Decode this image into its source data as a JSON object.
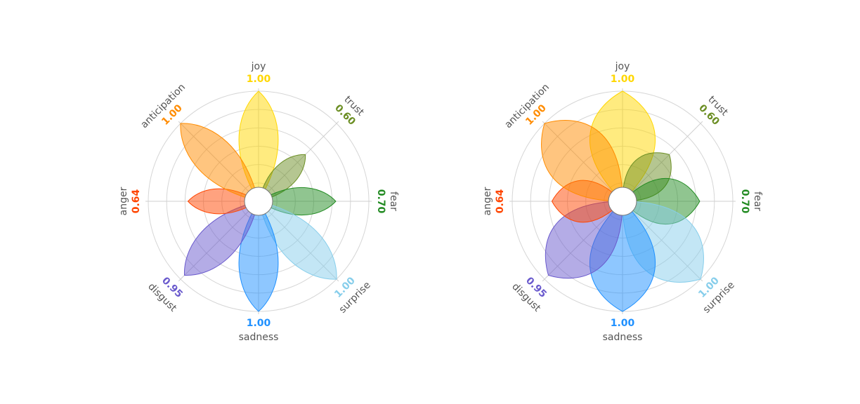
{
  "colors": {
    "joy": "#ffd700",
    "trust": "#6b8e23",
    "fear": "#228b22",
    "surprise": "#87ceeb",
    "sadness": "#1e90ff",
    "disgust": "#6a5acd",
    "anger": "#ff4500",
    "anticipation": "#ff8c00"
  },
  "chart_data": [
    {
      "type": "petal-radar",
      "emotions": [
        {
          "name": "joy",
          "value": 1.0,
          "label": "1.00"
        },
        {
          "name": "trust",
          "value": 0.6,
          "label": "0.60"
        },
        {
          "name": "fear",
          "value": 0.7,
          "label": "0.70"
        },
        {
          "name": "surprise",
          "value": 1.0,
          "label": "1.00"
        },
        {
          "name": "sadness",
          "value": 1.0,
          "label": "1.00"
        },
        {
          "name": "disgust",
          "value": 0.95,
          "label": "0.95"
        },
        {
          "name": "anger",
          "value": 0.64,
          "label": "0.64"
        },
        {
          "name": "anticipation",
          "value": 1.0,
          "label": "1.00"
        }
      ],
      "rmax": 1.0,
      "grid": true,
      "petal_style": "narrow"
    },
    {
      "type": "petal-radar",
      "emotions": [
        {
          "name": "joy",
          "value": 1.0,
          "label": "1.00"
        },
        {
          "name": "trust",
          "value": 0.6,
          "label": "0.60"
        },
        {
          "name": "fear",
          "value": 0.7,
          "label": "0.70"
        },
        {
          "name": "surprise",
          "value": 1.0,
          "label": "1.00"
        },
        {
          "name": "sadness",
          "value": 1.0,
          "label": "1.00"
        },
        {
          "name": "disgust",
          "value": 0.95,
          "label": "0.95"
        },
        {
          "name": "anger",
          "value": 0.64,
          "label": "0.64"
        },
        {
          "name": "anticipation",
          "value": 1.0,
          "label": "1.00"
        }
      ],
      "rmax": 1.0,
      "grid": true,
      "petal_style": "wide"
    }
  ]
}
